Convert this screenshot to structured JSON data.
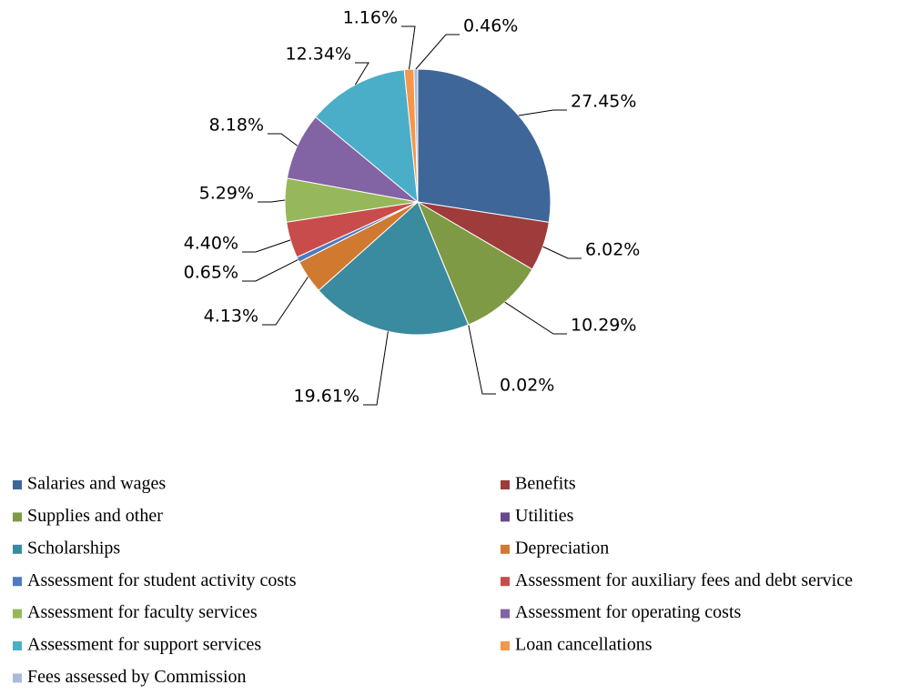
{
  "chart_data": {
    "type": "pie",
    "categories": [
      "Salaries and wages",
      "Benefits",
      "Supplies and other",
      "Utilities",
      "Scholarships",
      "Depreciation",
      "Assessment for student activity costs",
      "Assessment for auxiliary fees and debt service",
      "Assessment for faculty services",
      "Assessment for operating costs",
      "Assessment for support services",
      "Loan cancellations",
      "Fees assessed by Commission"
    ],
    "values": [
      27.45,
      6.02,
      10.29,
      0.02,
      19.61,
      4.13,
      0.65,
      4.4,
      5.29,
      8.18,
      12.34,
      1.16,
      0.46
    ],
    "value_labels": [
      "27.45%",
      "6.02%",
      "10.29%",
      "0.02%",
      "19.61%",
      "4.13%",
      "0.65%",
      "4.40%",
      "5.29%",
      "8.18%",
      "12.34%",
      "1.16%",
      "0.46%"
    ],
    "colors": [
      "#3e6699",
      "#9e3b3b",
      "#7f9a45",
      "#654a87",
      "#3a8aa0",
      "#d07a30",
      "#4a7cc0",
      "#c84c4c",
      "#96b85a",
      "#8263a3",
      "#4baec8",
      "#f4974b",
      "#a9badb"
    ],
    "legend": "bottom"
  }
}
